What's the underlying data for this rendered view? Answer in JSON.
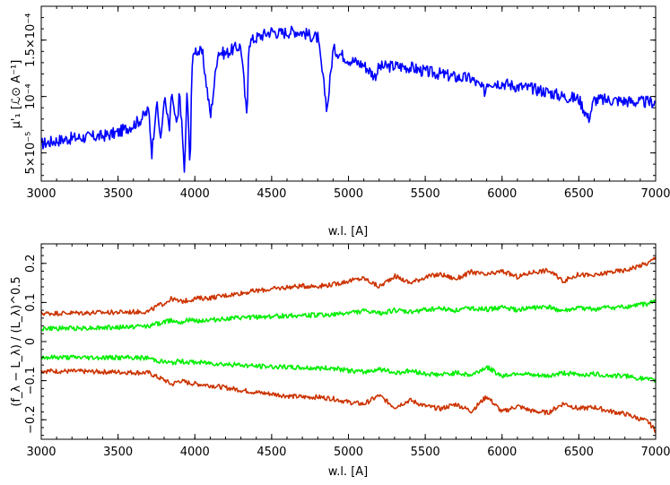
{
  "chart_data": [
    {
      "type": "line",
      "xlabel": "w.l. [A]",
      "ylabel": "μ'₁ [ℒ⊙ A⁻¹]",
      "xlim": [
        3000,
        7000
      ],
      "ylim": [
        2.5e-05,
        0.00018
      ],
      "xticks": [
        3000,
        3500,
        4000,
        4500,
        5000,
        5500,
        6000,
        6500,
        7000
      ],
      "xtick_labels": [
        "3000",
        "3500",
        "4000",
        "4500",
        "5000",
        "5500",
        "6000",
        "6500",
        "7000"
      ],
      "yticks": [
        5e-05,
        0.0001,
        0.00015
      ],
      "ytick_labels": [
        "5×10⁻⁵",
        "10⁻⁴",
        "1.5×10⁻⁴"
      ],
      "series": [
        {
          "color": "#0000ff",
          "x": [
            3000,
            3100,
            3200,
            3300,
            3400,
            3500,
            3600,
            3650,
            3700,
            3720,
            3750,
            3780,
            3800,
            3835,
            3850,
            3870,
            3889,
            3900,
            3933,
            3950,
            3968,
            3980,
            4000,
            4050,
            4102,
            4150,
            4200,
            4250,
            4300,
            4340,
            4350,
            4400,
            4450,
            4500,
            4550,
            4600,
            4650,
            4700,
            4750,
            4800,
            4861,
            4900,
            5000,
            5100,
            5172,
            5200,
            5300,
            5400,
            5500,
            5600,
            5700,
            5800,
            5893,
            5900,
            6000,
            6100,
            6200,
            6300,
            6400,
            6500,
            6563,
            6600,
            6700,
            6800,
            6900,
            7000
          ],
          "y": [
            5.8e-05,
            6.1e-05,
            6.3e-05,
            6.4e-05,
            6.5e-05,
            6.8e-05,
            7.5e-05,
            8e-05,
            8.8e-05,
            5e-05,
            9.5e-05,
            6e-05,
            0.0001,
            7e-05,
            0.000105,
            8e-05,
            7.5e-05,
            0.000108,
            3.1e-05,
            0.00011,
            3.2e-05,
            0.000125,
            0.000142,
            0.000138,
            8.2e-05,
            0.00014,
            0.000138,
            0.000142,
            0.000145,
            7.8e-05,
            0.000148,
            0.000152,
            0.000155,
            0.000158,
            0.000156,
            0.000157,
            0.000158,
            0.000157,
            0.000154,
            0.000152,
            8.8e-05,
            0.000142,
            0.000133,
            0.000128,
            0.000118,
            0.000126,
            0.000127,
            0.000126,
            0.000122,
            0.00012,
            0.000117,
            0.000116,
            0.000104,
            0.000113,
            0.000112,
            0.000109,
            0.000107,
            0.000104,
            0.0001,
            9.8e-05,
            8e-05,
            9.7e-05,
            9.7e-05,
            9.6e-05,
            9.5e-05,
            9.5e-05
          ]
        }
      ]
    },
    {
      "type": "line",
      "xlabel": "w.l. [A]",
      "ylabel": "(f_λ − L_λ) / (L_λ)^0.5",
      "xlim": [
        3000,
        7000
      ],
      "ylim": [
        -0.25,
        0.25
      ],
      "xticks": [
        3000,
        3500,
        4000,
        4500,
        5000,
        5500,
        6000,
        6500,
        7000
      ],
      "xtick_labels": [
        "3000",
        "3500",
        "4000",
        "4500",
        "5000",
        "5500",
        "6000",
        "6500",
        "7000"
      ],
      "yticks": [
        -0.2,
        -0.1,
        0,
        0.1,
        0.2
      ],
      "ytick_labels": [
        "−0.2",
        "−0.1",
        "0",
        "0.1",
        "0.2"
      ],
      "series": [
        {
          "color": "#cc3300",
          "x": [
            3000,
            3500,
            3700,
            3750,
            3800,
            3850,
            3900,
            3950,
            4000,
            4100,
            4200,
            4300,
            4400,
            4500,
            4600,
            4700,
            4800,
            4900,
            5000,
            5100,
            5200,
            5300,
            5400,
            5500,
            5600,
            5700,
            5800,
            5900,
            6000,
            6100,
            6200,
            6300,
            6400,
            6500,
            6600,
            6700,
            6800,
            6900,
            6950,
            7000
          ],
          "y": [
            0.072,
            0.075,
            0.077,
            0.09,
            0.098,
            0.11,
            0.102,
            0.105,
            0.11,
            0.112,
            0.118,
            0.124,
            0.13,
            0.134,
            0.139,
            0.142,
            0.142,
            0.146,
            0.155,
            0.162,
            0.14,
            0.168,
            0.15,
            0.165,
            0.172,
            0.16,
            0.178,
            0.17,
            0.18,
            0.165,
            0.178,
            0.182,
            0.155,
            0.172,
            0.168,
            0.178,
            0.182,
            0.195,
            0.2,
            0.215
          ]
        },
        {
          "color": "#00ee00",
          "x": [
            3000,
            3500,
            3700,
            3750,
            3800,
            3850,
            3900,
            3950,
            4000,
            4100,
            4200,
            4300,
            4400,
            4500,
            4600,
            4700,
            4800,
            4900,
            5000,
            5100,
            5200,
            5300,
            5400,
            5500,
            5600,
            5700,
            5800,
            5900,
            6000,
            6100,
            6200,
            6300,
            6400,
            6500,
            6600,
            6700,
            6800,
            6900,
            6950,
            7000
          ],
          "y": [
            0.033,
            0.036,
            0.04,
            0.045,
            0.05,
            0.055,
            0.05,
            0.055,
            0.053,
            0.055,
            0.058,
            0.06,
            0.063,
            0.064,
            0.066,
            0.067,
            0.068,
            0.068,
            0.074,
            0.078,
            0.072,
            0.08,
            0.075,
            0.082,
            0.085,
            0.08,
            0.086,
            0.082,
            0.088,
            0.08,
            0.087,
            0.088,
            0.078,
            0.085,
            0.083,
            0.087,
            0.088,
            0.094,
            0.097,
            0.105
          ]
        },
        {
          "color": "#00ee00",
          "x": [
            3000,
            3500,
            3700,
            3750,
            3800,
            3850,
            3900,
            3950,
            4000,
            4100,
            4200,
            4300,
            4400,
            4500,
            4600,
            4700,
            4800,
            4900,
            5000,
            5100,
            5200,
            5300,
            5400,
            5500,
            5600,
            5700,
            5800,
            5900,
            6000,
            6100,
            6200,
            6300,
            6400,
            6500,
            6600,
            6700,
            6800,
            6900,
            6950,
            7000
          ],
          "y": [
            -0.04,
            -0.041,
            -0.042,
            -0.048,
            -0.052,
            -0.055,
            -0.05,
            -0.052,
            -0.053,
            -0.055,
            -0.058,
            -0.06,
            -0.063,
            -0.064,
            -0.066,
            -0.067,
            -0.068,
            -0.068,
            -0.074,
            -0.078,
            -0.07,
            -0.08,
            -0.075,
            -0.082,
            -0.085,
            -0.08,
            -0.086,
            -0.065,
            -0.088,
            -0.08,
            -0.087,
            -0.088,
            -0.08,
            -0.085,
            -0.083,
            -0.087,
            -0.088,
            -0.094,
            -0.097,
            -0.1
          ]
        },
        {
          "color": "#cc3300",
          "x": [
            3000,
            3500,
            3700,
            3750,
            3800,
            3850,
            3900,
            3950,
            4000,
            4100,
            4200,
            4300,
            4400,
            4500,
            4600,
            4700,
            4800,
            4900,
            5000,
            5100,
            5200,
            5300,
            5400,
            5500,
            5600,
            5700,
            5800,
            5900,
            6000,
            6100,
            6200,
            6300,
            6400,
            6500,
            6600,
            6700,
            6800,
            6900,
            6950,
            7000
          ],
          "y": [
            -0.075,
            -0.078,
            -0.08,
            -0.09,
            -0.098,
            -0.11,
            -0.1,
            -0.105,
            -0.108,
            -0.112,
            -0.118,
            -0.124,
            -0.13,
            -0.134,
            -0.139,
            -0.142,
            -0.142,
            -0.146,
            -0.155,
            -0.16,
            -0.138,
            -0.168,
            -0.15,
            -0.165,
            -0.172,
            -0.16,
            -0.178,
            -0.14,
            -0.18,
            -0.165,
            -0.178,
            -0.182,
            -0.158,
            -0.172,
            -0.168,
            -0.178,
            -0.185,
            -0.198,
            -0.205,
            -0.228
          ]
        }
      ]
    }
  ]
}
